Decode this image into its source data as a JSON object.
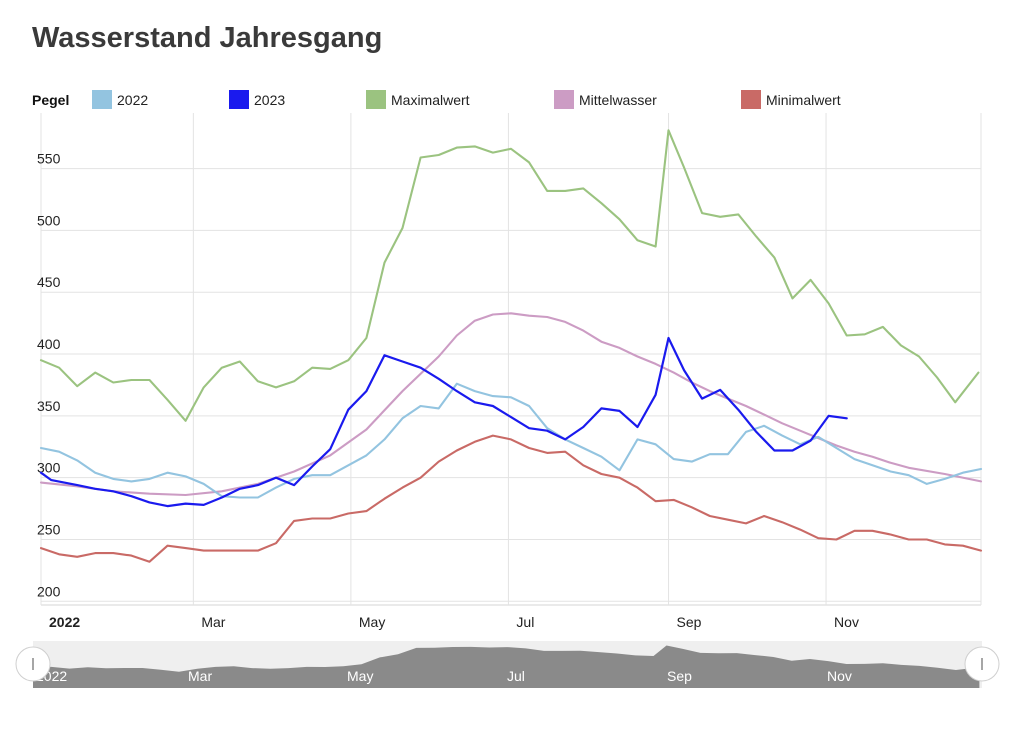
{
  "page": {
    "title": "Wasserstand Jahresgang"
  },
  "legend": {
    "title": "Pegel",
    "items": [
      {
        "label": "2022",
        "color": "#93c4e0"
      },
      {
        "label": "2023",
        "color": "#1a1aee"
      },
      {
        "label": "Maximalwert",
        "color": "#9bc380"
      },
      {
        "label": "Mittelwasser",
        "color": "#cc9cc4"
      },
      {
        "label": "Minimalwert",
        "color": "#c96a66"
      }
    ]
  },
  "navigator": {
    "labels": [
      "2022",
      "Mar",
      "May",
      "Jul",
      "Sep",
      "Nov"
    ]
  },
  "chart_data": {
    "type": "line",
    "title": "Wasserstand Jahresgang",
    "xlabel": "",
    "ylabel": "",
    "x_start": "2022-01-01",
    "x_end": "2022-12-31",
    "x_ticks": [
      {
        "label": "2022",
        "date": "2022-01-01",
        "bold": true
      },
      {
        "label": "Mar",
        "date": "2022-03-01"
      },
      {
        "label": "May",
        "date": "2022-05-01"
      },
      {
        "label": "Jul",
        "date": "2022-07-01"
      },
      {
        "label": "Sep",
        "date": "2022-09-01"
      },
      {
        "label": "Nov",
        "date": "2022-11-01"
      }
    ],
    "y_ticks": [
      200,
      250,
      300,
      350,
      400,
      450,
      500,
      550
    ],
    "ylim": [
      197,
      595
    ],
    "grid": true,
    "legend_position": "top",
    "series": [
      {
        "name": "2022",
        "color": "#93c4e0",
        "points": [
          [
            "2022-01-01",
            324
          ],
          [
            "2022-01-08",
            321
          ],
          [
            "2022-01-15",
            314
          ],
          [
            "2022-01-22",
            304
          ],
          [
            "2022-01-29",
            299
          ],
          [
            "2022-02-05",
            297
          ],
          [
            "2022-02-12",
            299
          ],
          [
            "2022-02-19",
            304
          ],
          [
            "2022-02-26",
            301
          ],
          [
            "2022-03-05",
            295
          ],
          [
            "2022-03-12",
            285
          ],
          [
            "2022-03-19",
            284
          ],
          [
            "2022-03-26",
            284
          ],
          [
            "2022-04-02",
            292
          ],
          [
            "2022-04-09",
            299
          ],
          [
            "2022-04-16",
            302
          ],
          [
            "2022-04-23",
            302
          ],
          [
            "2022-04-30",
            310
          ],
          [
            "2022-05-07",
            318
          ],
          [
            "2022-05-14",
            331
          ],
          [
            "2022-05-21",
            348
          ],
          [
            "2022-05-28",
            358
          ],
          [
            "2022-06-04",
            356
          ],
          [
            "2022-06-11",
            376
          ],
          [
            "2022-06-18",
            370
          ],
          [
            "2022-06-25",
            366
          ],
          [
            "2022-07-02",
            365
          ],
          [
            "2022-07-09",
            358
          ],
          [
            "2022-07-16",
            340
          ],
          [
            "2022-07-23",
            331
          ],
          [
            "2022-07-30",
            324
          ],
          [
            "2022-08-06",
            317
          ],
          [
            "2022-08-13",
            306
          ],
          [
            "2022-08-20",
            331
          ],
          [
            "2022-08-27",
            327
          ],
          [
            "2022-09-03",
            315
          ],
          [
            "2022-09-10",
            313
          ],
          [
            "2022-09-17",
            319
          ],
          [
            "2022-09-24",
            319
          ],
          [
            "2022-10-01",
            337
          ],
          [
            "2022-10-08",
            342
          ],
          [
            "2022-10-15",
            334
          ],
          [
            "2022-10-22",
            327
          ],
          [
            "2022-10-29",
            333
          ],
          [
            "2022-11-05",
            324
          ],
          [
            "2022-11-12",
            315
          ],
          [
            "2022-11-19",
            310
          ],
          [
            "2022-11-26",
            305
          ],
          [
            "2022-12-03",
            302
          ],
          [
            "2022-12-10",
            295
          ],
          [
            "2022-12-17",
            299
          ],
          [
            "2022-12-24",
            304
          ],
          [
            "2022-12-31",
            307
          ]
        ]
      },
      {
        "name": "2023",
        "color": "#1a1aee",
        "points": [
          [
            "2022-01-01",
            304
          ],
          [
            "2022-01-05",
            298
          ],
          [
            "2022-01-15",
            294
          ],
          [
            "2022-01-22",
            291
          ],
          [
            "2022-01-29",
            289
          ],
          [
            "2022-02-05",
            285
          ],
          [
            "2022-02-12",
            280
          ],
          [
            "2022-02-19",
            277
          ],
          [
            "2022-02-26",
            279
          ],
          [
            "2022-03-05",
            278
          ],
          [
            "2022-03-12",
            284
          ],
          [
            "2022-03-19",
            291
          ],
          [
            "2022-03-26",
            294
          ],
          [
            "2022-04-02",
            300
          ],
          [
            "2022-04-09",
            294
          ],
          [
            "2022-04-16",
            309
          ],
          [
            "2022-04-23",
            323
          ],
          [
            "2022-04-30",
            355
          ],
          [
            "2022-05-07",
            370
          ],
          [
            "2022-05-14",
            399
          ],
          [
            "2022-05-21",
            394
          ],
          [
            "2022-05-28",
            389
          ],
          [
            "2022-06-04",
            380
          ],
          [
            "2022-06-11",
            370
          ],
          [
            "2022-06-18",
            361
          ],
          [
            "2022-06-25",
            358
          ],
          [
            "2022-07-02",
            349
          ],
          [
            "2022-07-09",
            340
          ],
          [
            "2022-07-16",
            338
          ],
          [
            "2022-07-23",
            331
          ],
          [
            "2022-07-30",
            341
          ],
          [
            "2022-08-06",
            356
          ],
          [
            "2022-08-13",
            354
          ],
          [
            "2022-08-20",
            341
          ],
          [
            "2022-08-27",
            367
          ],
          [
            "2022-09-01",
            413
          ],
          [
            "2022-09-07",
            387
          ],
          [
            "2022-09-14",
            364
          ],
          [
            "2022-09-21",
            371
          ],
          [
            "2022-09-28",
            355
          ],
          [
            "2022-10-05",
            337
          ],
          [
            "2022-10-12",
            322
          ],
          [
            "2022-10-19",
            322
          ],
          [
            "2022-10-26",
            330
          ],
          [
            "2022-11-02",
            350
          ],
          [
            "2022-11-09",
            348
          ]
        ]
      },
      {
        "name": "Maximalwert",
        "color": "#9bc380",
        "points": [
          [
            "2022-01-01",
            395
          ],
          [
            "2022-01-08",
            389
          ],
          [
            "2022-01-15",
            374
          ],
          [
            "2022-01-22",
            385
          ],
          [
            "2022-01-29",
            377
          ],
          [
            "2022-02-05",
            379
          ],
          [
            "2022-02-12",
            379
          ],
          [
            "2022-02-19",
            363
          ],
          [
            "2022-02-26",
            346
          ],
          [
            "2022-03-05",
            373
          ],
          [
            "2022-03-12",
            389
          ],
          [
            "2022-03-19",
            394
          ],
          [
            "2022-03-26",
            378
          ],
          [
            "2022-04-02",
            373
          ],
          [
            "2022-04-09",
            378
          ],
          [
            "2022-04-16",
            389
          ],
          [
            "2022-04-23",
            388
          ],
          [
            "2022-04-30",
            395
          ],
          [
            "2022-05-07",
            413
          ],
          [
            "2022-05-14",
            474
          ],
          [
            "2022-05-21",
            502
          ],
          [
            "2022-05-28",
            559
          ],
          [
            "2022-06-04",
            561
          ],
          [
            "2022-06-11",
            567
          ],
          [
            "2022-06-18",
            568
          ],
          [
            "2022-06-25",
            563
          ],
          [
            "2022-07-02",
            566
          ],
          [
            "2022-07-09",
            555
          ],
          [
            "2022-07-16",
            532
          ],
          [
            "2022-07-23",
            532
          ],
          [
            "2022-07-30",
            534
          ],
          [
            "2022-08-06",
            522
          ],
          [
            "2022-08-13",
            509
          ],
          [
            "2022-08-20",
            492
          ],
          [
            "2022-08-27",
            487
          ],
          [
            "2022-09-01",
            581
          ],
          [
            "2022-09-07",
            551
          ],
          [
            "2022-09-14",
            514
          ],
          [
            "2022-09-21",
            511
          ],
          [
            "2022-09-28",
            513
          ],
          [
            "2022-10-05",
            495
          ],
          [
            "2022-10-12",
            478
          ],
          [
            "2022-10-19",
            445
          ],
          [
            "2022-10-26",
            460
          ],
          [
            "2022-11-02",
            441
          ],
          [
            "2022-11-09",
            415
          ],
          [
            "2022-11-16",
            416
          ],
          [
            "2022-11-23",
            422
          ],
          [
            "2022-11-30",
            407
          ],
          [
            "2022-12-07",
            398
          ],
          [
            "2022-12-14",
            381
          ],
          [
            "2022-12-21",
            361
          ],
          [
            "2022-12-30",
            385
          ]
        ]
      },
      {
        "name": "Mittelwasser",
        "color": "#cc9cc4",
        "points": [
          [
            "2022-01-01",
            296
          ],
          [
            "2022-01-15",
            293
          ],
          [
            "2022-01-29",
            289
          ],
          [
            "2022-02-12",
            287
          ],
          [
            "2022-02-26",
            286
          ],
          [
            "2022-03-12",
            289
          ],
          [
            "2022-03-26",
            295
          ],
          [
            "2022-04-09",
            305
          ],
          [
            "2022-04-23",
            318
          ],
          [
            "2022-05-07",
            339
          ],
          [
            "2022-05-21",
            370
          ],
          [
            "2022-06-04",
            398
          ],
          [
            "2022-06-11",
            415
          ],
          [
            "2022-06-18",
            427
          ],
          [
            "2022-06-25",
            432
          ],
          [
            "2022-07-02",
            433
          ],
          [
            "2022-07-09",
            431
          ],
          [
            "2022-07-16",
            430
          ],
          [
            "2022-07-23",
            426
          ],
          [
            "2022-07-30",
            419
          ],
          [
            "2022-08-06",
            410
          ],
          [
            "2022-08-13",
            405
          ],
          [
            "2022-08-20",
            398
          ],
          [
            "2022-08-27",
            392
          ],
          [
            "2022-09-03",
            385
          ],
          [
            "2022-09-10",
            377
          ],
          [
            "2022-09-17",
            370
          ],
          [
            "2022-09-24",
            364
          ],
          [
            "2022-10-01",
            358
          ],
          [
            "2022-10-08",
            351
          ],
          [
            "2022-10-15",
            344
          ],
          [
            "2022-10-22",
            338
          ],
          [
            "2022-10-29",
            332
          ],
          [
            "2022-11-05",
            326
          ],
          [
            "2022-11-12",
            321
          ],
          [
            "2022-11-19",
            317
          ],
          [
            "2022-11-26",
            312
          ],
          [
            "2022-12-03",
            308
          ],
          [
            "2022-12-17",
            303
          ],
          [
            "2022-12-31",
            297
          ]
        ]
      },
      {
        "name": "Minimalwert",
        "color": "#c96a66",
        "points": [
          [
            "2022-01-01",
            243
          ],
          [
            "2022-01-08",
            238
          ],
          [
            "2022-01-15",
            236
          ],
          [
            "2022-01-22",
            239
          ],
          [
            "2022-01-29",
            239
          ],
          [
            "2022-02-05",
            237
          ],
          [
            "2022-02-12",
            232
          ],
          [
            "2022-02-19",
            245
          ],
          [
            "2022-02-26",
            243
          ],
          [
            "2022-03-05",
            241
          ],
          [
            "2022-03-12",
            241
          ],
          [
            "2022-03-19",
            241
          ],
          [
            "2022-03-26",
            241
          ],
          [
            "2022-04-02",
            247
          ],
          [
            "2022-04-09",
            265
          ],
          [
            "2022-04-16",
            267
          ],
          [
            "2022-04-23",
            267
          ],
          [
            "2022-04-30",
            271
          ],
          [
            "2022-05-07",
            273
          ],
          [
            "2022-05-14",
            283
          ],
          [
            "2022-05-21",
            292
          ],
          [
            "2022-05-28",
            300
          ],
          [
            "2022-06-04",
            313
          ],
          [
            "2022-06-11",
            322
          ],
          [
            "2022-06-18",
            329
          ],
          [
            "2022-06-25",
            334
          ],
          [
            "2022-07-02",
            331
          ],
          [
            "2022-07-09",
            324
          ],
          [
            "2022-07-16",
            320
          ],
          [
            "2022-07-23",
            321
          ],
          [
            "2022-07-30",
            310
          ],
          [
            "2022-08-06",
            303
          ],
          [
            "2022-08-13",
            300
          ],
          [
            "2022-08-20",
            292
          ],
          [
            "2022-08-27",
            281
          ],
          [
            "2022-09-03",
            282
          ],
          [
            "2022-09-10",
            276
          ],
          [
            "2022-09-17",
            269
          ],
          [
            "2022-09-24",
            266
          ],
          [
            "2022-10-01",
            263
          ],
          [
            "2022-10-08",
            269
          ],
          [
            "2022-10-15",
            264
          ],
          [
            "2022-10-22",
            258
          ],
          [
            "2022-10-29",
            251
          ],
          [
            "2022-11-05",
            250
          ],
          [
            "2022-11-12",
            257
          ],
          [
            "2022-11-19",
            257
          ],
          [
            "2022-11-26",
            254
          ],
          [
            "2022-12-03",
            250
          ],
          [
            "2022-12-10",
            250
          ],
          [
            "2022-12-17",
            246
          ],
          [
            "2022-12-24",
            245
          ],
          [
            "2022-12-31",
            241
          ]
        ]
      }
    ]
  }
}
